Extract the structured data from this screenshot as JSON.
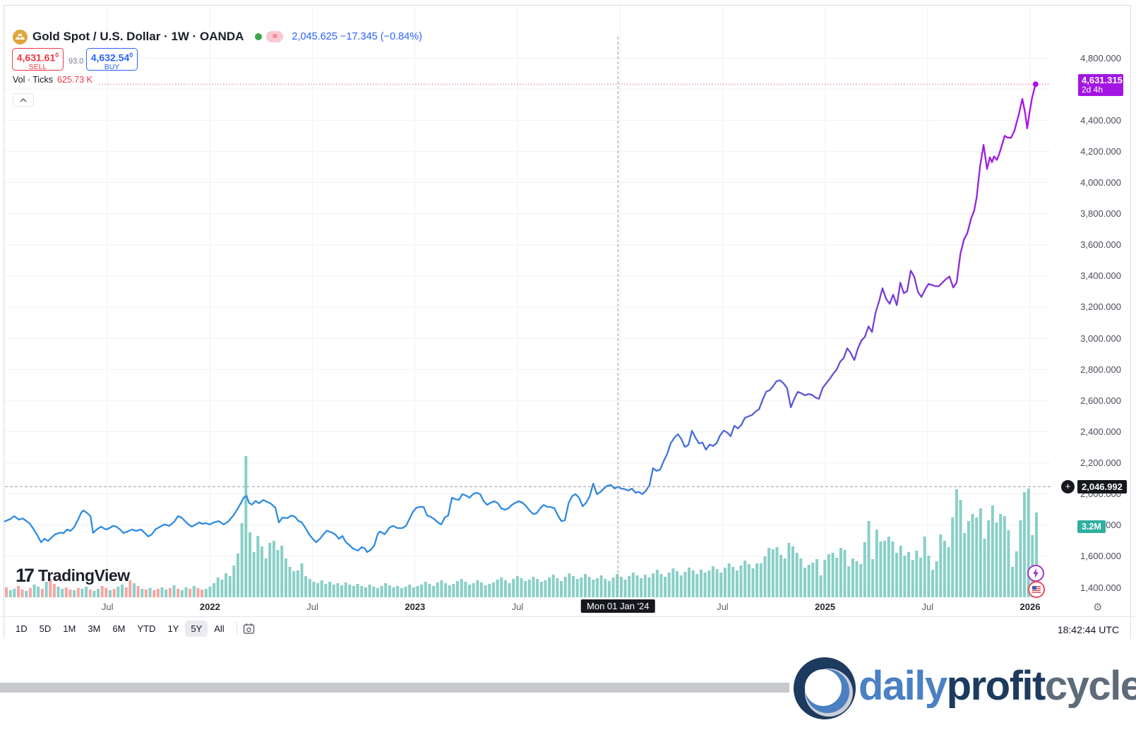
{
  "header": {
    "symbol_title": "Gold Spot / U.S. Dollar · 1W · OANDA",
    "quote": "2,045.625 −17.345 (−0.84%)",
    "sell": {
      "price": "4,631.61",
      "sup": "0",
      "label": "SELL"
    },
    "spread": "93.0",
    "buy": {
      "price": "4,632.54",
      "sup": "0",
      "label": "BUY"
    },
    "vol_label": "Vol · Ticks",
    "vol_value": "625.73 K"
  },
  "watermark": {
    "mark": "17",
    "text": "TradingView"
  },
  "toolbar": {
    "ranges": [
      "1D",
      "5D",
      "1M",
      "3M",
      "6M",
      "YTD",
      "1Y",
      "5Y",
      "All"
    ],
    "active": "5Y",
    "clock": "18:42:44 UTC"
  },
  "footer": {
    "brand": [
      {
        "text": "daily",
        "color": "#4A80C4"
      },
      {
        "text": "profit",
        "color": "#1D3A5F"
      },
      {
        "text": "cycle",
        "color": "#5E6B78"
      }
    ]
  },
  "axes": {
    "price_labels": [
      {
        "v": 4800,
        "label": "4,800.000"
      },
      {
        "v": 4600,
        "label": "4,600.000"
      },
      {
        "v": 4400,
        "label": "4,400.000"
      },
      {
        "v": 4200,
        "label": "4,200.000"
      },
      {
        "v": 4000,
        "label": "4,000.000"
      },
      {
        "v": 3800,
        "label": "3,800.000"
      },
      {
        "v": 3600,
        "label": "3,600.000"
      },
      {
        "v": 3400,
        "label": "3,400.000"
      },
      {
        "v": 3200,
        "label": "3,200.000"
      },
      {
        "v": 3000,
        "label": "3,000.000"
      },
      {
        "v": 2800,
        "label": "2,800.000"
      },
      {
        "v": 2600,
        "label": "2,600.000"
      },
      {
        "v": 2400,
        "label": "2,400.000"
      },
      {
        "v": 2200,
        "label": "2,200.000"
      },
      {
        "v": 2000,
        "label": "2,000.000"
      },
      {
        "v": 1800,
        "label": "1,800.000"
      },
      {
        "v": 1600,
        "label": "1,600.000"
      },
      {
        "v": 1400,
        "label": "1,400.000"
      }
    ],
    "time_ticks": [
      {
        "t": 2021.5,
        "label": "Jul",
        "strong": false
      },
      {
        "t": 2022.0,
        "label": "2022",
        "strong": true
      },
      {
        "t": 2022.5,
        "label": "Jul",
        "strong": false
      },
      {
        "t": 2023.0,
        "label": "2023",
        "strong": true
      },
      {
        "t": 2023.5,
        "label": "Jul",
        "strong": false
      },
      {
        "t": 2024.0,
        "label": "",
        "strong": false
      },
      {
        "t": 2024.5,
        "label": "Jul",
        "strong": false
      },
      {
        "t": 2025.0,
        "label": "2025",
        "strong": true
      },
      {
        "t": 2025.5,
        "label": "Jul",
        "strong": false
      },
      {
        "t": 2026.0,
        "label": "2026",
        "strong": true
      }
    ],
    "crosshair": {
      "t": 2023.99,
      "price": 2046.992,
      "price_label": "2,046.992",
      "date_label": "Mon 01 Jan '24",
      "vol_label": "3.2M",
      "vol_y_price": 1790
    },
    "last": {
      "price": 4631.315,
      "label": "4,631.315",
      "countdown": "2d 4h"
    }
  },
  "chart_data": {
    "type": "line+volume",
    "title": "Gold Spot / U.S. Dollar, 1W, OANDA — 5Y view",
    "x_unit": "decimal_year",
    "ylim": [
      1400,
      4800
    ],
    "points": [
      2021.0,
      1825,
      2021.028,
      1840,
      2021.045,
      1858,
      2021.069,
      1835,
      2021.086,
      1843,
      2021.103,
      1828,
      2021.121,
      1810,
      2021.141,
      1772,
      2021.158,
      1735,
      2021.176,
      1690,
      2021.193,
      1712,
      2021.21,
      1698,
      2021.227,
      1720,
      2021.244,
      1740,
      2021.269,
      1752,
      2021.286,
      1749,
      2021.303,
      1772,
      2021.32,
      1763,
      2021.337,
      1786,
      2021.355,
      1831,
      2021.372,
      1880,
      2021.382,
      1894,
      2021.399,
      1880,
      2021.417,
      1858,
      2021.43,
      1750,
      2021.448,
      1772,
      2021.468,
      1790,
      2021.492,
      1772,
      2021.51,
      1781,
      2021.527,
      1795,
      2021.544,
      1790,
      2021.561,
      1772,
      2021.578,
      1749,
      2021.596,
      1758,
      2021.62,
      1772,
      2021.64,
      1763,
      2021.664,
      1772,
      2021.682,
      1749,
      2021.699,
      1727,
      2021.716,
      1740,
      2021.733,
      1772,
      2021.757,
      1790,
      2021.778,
      1804,
      2021.802,
      1795,
      2021.826,
      1822,
      2021.844,
      1858,
      2021.861,
      1849,
      2021.878,
      1826,
      2021.895,
      1804,
      2021.912,
      1790,
      2021.93,
      1804,
      2021.947,
      1817,
      2021.964,
      1808,
      2021.981,
      1813,
      2021.998,
      1804,
      2022.019,
      1817,
      2022.043,
      1826,
      2022.067,
      1804,
      2022.088,
      1822,
      2022.112,
      1858,
      2022.133,
      1900,
      2022.15,
      1940,
      2022.164,
      1976,
      2022.178,
      1988,
      2022.191,
      1942,
      2022.205,
      1932,
      2022.222,
      1955,
      2022.24,
      1940,
      2022.26,
      1962,
      2022.277,
      1950,
      2022.295,
      1940,
      2022.319,
      1912,
      2022.336,
      1817,
      2022.353,
      1848,
      2022.377,
      1845,
      2022.398,
      1862,
      2022.415,
      1853,
      2022.432,
      1826,
      2022.446,
      1820,
      2022.464,
      1786,
      2022.484,
      1740,
      2022.501,
      1712,
      2022.518,
      1690,
      2022.536,
      1712,
      2022.553,
      1740,
      2022.57,
      1764,
      2022.594,
      1753,
      2022.611,
      1740,
      2022.629,
      1712,
      2022.646,
      1730,
      2022.663,
      1690,
      2022.68,
      1672,
      2022.697,
      1650,
      2022.722,
      1636,
      2022.739,
      1659,
      2022.756,
      1650,
      2022.766,
      1627,
      2022.783,
      1640,
      2022.801,
      1668,
      2022.818,
      1741,
      2022.828,
      1759,
      2022.852,
      1741,
      2022.877,
      1786,
      2022.894,
      1795,
      2022.914,
      1781,
      2022.938,
      1781,
      2022.956,
      1795,
      2022.973,
      1840,
      2022.99,
      1885,
      2023.007,
      1912,
      2023.024,
      1917,
      2023.042,
      1917,
      2023.059,
      1862,
      2023.076,
      1853,
      2023.093,
      1840,
      2023.111,
      1817,
      2023.128,
      1804,
      2023.145,
      1849,
      2023.162,
      1862,
      2023.18,
      1976,
      2023.197,
      1967,
      2023.214,
      1962,
      2023.231,
      1999,
      2023.249,
      1990,
      2023.266,
      1976,
      2023.283,
      1999,
      2023.3,
      2008,
      2023.318,
      1999,
      2023.335,
      1953,
      2023.352,
      1930,
      2023.369,
      1944,
      2023.387,
      1953,
      2023.404,
      1940,
      2023.421,
      1908,
      2023.438,
      1899,
      2023.456,
      1908,
      2023.473,
      1930,
      2023.49,
      1944,
      2023.507,
      1953,
      2023.524,
      1944,
      2023.542,
      1921,
      2023.559,
      1894,
      2023.576,
      1871,
      2023.593,
      1876,
      2023.611,
      1908,
      2023.628,
      1930,
      2023.645,
      1917,
      2023.662,
      1917,
      2023.68,
      1908,
      2023.697,
      1862,
      2023.714,
      1826,
      2023.731,
      1831,
      2023.749,
      1940,
      2023.766,
      1985,
      2023.783,
      1999,
      2023.8,
      1976,
      2023.818,
      1921,
      2023.835,
      1944,
      2023.852,
      1985,
      2023.869,
      2066,
      2023.887,
      1999,
      2023.904,
      2012,
      2023.921,
      2035,
      2023.938,
      2053,
      2023.956,
      2057,
      2023.973,
      2035,
      2023.99,
      2047,
      2024.006,
      2035,
      2024.023,
      2031,
      2024.04,
      2022,
      2024.058,
      2035,
      2024.075,
      2008,
      2024.092,
      2013,
      2024.109,
      1999,
      2024.127,
      2022,
      2024.144,
      2058,
      2024.161,
      2166,
      2024.178,
      2148,
      2024.196,
      2157,
      2024.213,
      2212,
      2024.23,
      2257,
      2024.247,
      2325,
      2024.265,
      2361,
      2024.282,
      2384,
      2024.299,
      2353,
      2024.316,
      2302,
      2024.334,
      2316,
      2024.351,
      2406,
      2024.368,
      2361,
      2024.385,
      2325,
      2024.402,
      2330,
      2024.419,
      2284,
      2024.437,
      2317,
      2024.454,
      2308,
      2024.471,
      2326,
      2024.488,
      2376,
      2024.506,
      2407,
      2024.523,
      2394,
      2024.54,
      2371,
      2024.557,
      2438,
      2024.575,
      2421,
      2024.592,
      2444,
      2024.609,
      2489,
      2024.626,
      2498,
      2024.644,
      2507,
      2024.661,
      2530,
      2024.678,
      2544,
      2024.695,
      2603,
      2024.713,
      2657,
      2024.73,
      2666,
      2024.747,
      2693,
      2024.763,
      2724,
      2024.781,
      2730,
      2024.798,
      2710,
      2024.815,
      2679,
      2024.833,
      2556,
      2024.85,
      2611,
      2024.867,
      2656,
      2024.884,
      2647,
      2024.902,
      2633,
      2024.919,
      2642,
      2024.936,
      2637,
      2024.953,
      2619,
      2024.97,
      2611,
      2024.988,
      2680,
      2025.005,
      2710,
      2025.022,
      2738,
      2025.039,
      2770,
      2025.057,
      2800,
      2025.074,
      2850,
      2025.091,
      2873,
      2025.108,
      2935,
      2025.125,
      2905,
      2025.143,
      2860,
      2025.16,
      2935,
      2025.177,
      2985,
      2025.194,
      3008,
      2025.212,
      3076,
      2025.229,
      3040,
      2025.246,
      3162,
      2025.263,
      3235,
      2025.28,
      3321,
      2025.298,
      3253,
      2025.315,
      3221,
      2025.332,
      3280,
      2025.35,
      3212,
      2025.367,
      3357,
      2025.384,
      3289,
      2025.4,
      3302,
      2025.418,
      3434,
      2025.435,
      3395,
      2025.453,
      3297,
      2025.47,
      3265,
      2025.487,
      3311,
      2025.504,
      3348,
      2025.52,
      3343,
      2025.538,
      3334,
      2025.555,
      3334,
      2025.573,
      3358,
      2025.59,
      3380,
      2025.607,
      3396,
      2025.625,
      3326,
      2025.642,
      3358,
      2025.66,
      3542,
      2025.677,
      3632,
      2025.694,
      3675,
      2025.712,
      3768,
      2025.728,
      3822,
      2025.739,
      3902,
      2025.756,
      4102,
      2025.773,
      4242,
      2025.79,
      4086,
      2025.804,
      4162,
      2025.814,
      4130,
      2025.824,
      4168,
      2025.838,
      4145,
      2025.848,
      4178,
      2025.866,
      4254,
      2025.876,
      4300,
      2025.89,
      4288,
      2025.907,
      4287,
      2025.924,
      4333,
      2025.945,
      4437,
      2025.962,
      4537,
      2025.976,
      4446,
      2025.986,
      4347,
      2025.997,
      4446,
      2026.01,
      4546,
      2026.027,
      4631.315
    ],
    "volume_bars": {
      "unit": "px_height",
      "heights": [
        14,
        10,
        12,
        16,
        11,
        9,
        13,
        18,
        15,
        12,
        22,
        26,
        19,
        15,
        12,
        14,
        11,
        10,
        13,
        12,
        15,
        11,
        9,
        12,
        16,
        13,
        10,
        12,
        15,
        18,
        14,
        24,
        20,
        16,
        12,
        11,
        13,
        10,
        12,
        14,
        11,
        13,
        17,
        12,
        10,
        14,
        12,
        16,
        13,
        11,
        12,
        15,
        20,
        28,
        25,
        34,
        30,
        45,
        62,
        105,
        200,
        92,
        64,
        87,
        72,
        55,
        77,
        80,
        67,
        73,
        55,
        43,
        37,
        38,
        48,
        30,
        26,
        22,
        20,
        24,
        19,
        22,
        18,
        20,
        17,
        21,
        18,
        16,
        19,
        16,
        14,
        18,
        15,
        13,
        16,
        20,
        17,
        14,
        16,
        13,
        15,
        18,
        14,
        16,
        18,
        22,
        19,
        16,
        21,
        24,
        20,
        17,
        19,
        23,
        26,
        22,
        18,
        20,
        24,
        21,
        17,
        19,
        21,
        25,
        28,
        24,
        20,
        26,
        30,
        27,
        23,
        25,
        29,
        26,
        22,
        24,
        28,
        32,
        27,
        23,
        29,
        34,
        30,
        26,
        28,
        33,
        29,
        25,
        27,
        31,
        26,
        23,
        28,
        33,
        29,
        25,
        30,
        35,
        31,
        27,
        32,
        28,
        34,
        39,
        33,
        29,
        35,
        41,
        37,
        31,
        36,
        42,
        38,
        33,
        39,
        35,
        38,
        44,
        40,
        35,
        42,
        48,
        43,
        38,
        45,
        52,
        47,
        41,
        48,
        48,
        58,
        70,
        68,
        71,
        60,
        55,
        77,
        72,
        63,
        55,
        42,
        46,
        49,
        54,
        31,
        53,
        61,
        63,
        56,
        70,
        67,
        44,
        55,
        51,
        47,
        78,
        108,
        54,
        96,
        79,
        80,
        86,
        79,
        63,
        73,
        59,
        64,
        53,
        66,
        56,
        86,
        59,
        39,
        51,
        89,
        80,
        71,
        113,
        153,
        138,
        91,
        108,
        118,
        113,
        126,
        83,
        109,
        130,
        106,
        118,
        115,
        95,
        43,
        65,
        109,
        149,
        154,
        88,
        120
      ],
      "colors": "pttpptpttptppttpptpttpttpptpttpptptptppttptpttptpp((tt))"
    }
  },
  "colors": {
    "line_start": "#2E8BE0",
    "line_end": "#A90FF0",
    "vol_up": "#89CFC7",
    "vol_down": "#F4A6A3",
    "grid": "#F0F1F4",
    "last_line": "#F23645",
    "crosshair": "#9598A1",
    "badge_last": "#A315E3",
    "badge_dark": "#16181E",
    "badge_vol": "#2FAF9F"
  }
}
